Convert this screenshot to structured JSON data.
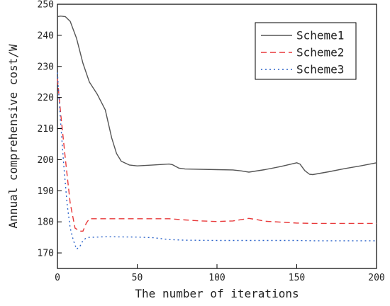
{
  "chart_data": {
    "type": "line",
    "xlabel": "The number of iterations",
    "ylabel": "Annual comprehensive cost/W",
    "xlim": [
      0,
      200
    ],
    "ylim": [
      165,
      250
    ],
    "xticks": [
      0,
      50,
      100,
      150,
      200
    ],
    "yticks": [
      170,
      180,
      190,
      200,
      210,
      220,
      230,
      240,
      250
    ],
    "grid": false,
    "legend_position": "top-right",
    "series": [
      {
        "name": "Scheme1",
        "color": "#555555",
        "dash": "solid",
        "x": [
          0,
          2,
          5,
          8,
          12,
          16,
          20,
          25,
          30,
          34,
          37,
          40,
          45,
          50,
          60,
          70,
          72,
          76,
          80,
          100,
          110,
          115,
          120,
          130,
          140,
          150,
          152,
          155,
          158,
          160,
          170,
          180,
          190,
          200
        ],
        "y": [
          246,
          246.2,
          246,
          244.5,
          239,
          231,
          225,
          221,
          216,
          207,
          202,
          199.5,
          198.3,
          198,
          198.3,
          198.6,
          198.4,
          197.3,
          197,
          196.8,
          196.7,
          196.4,
          196,
          196.8,
          197.8,
          199,
          198.6,
          196.5,
          195.3,
          195.2,
          196.1,
          197.1,
          198,
          199
        ]
      },
      {
        "name": "Scheme2",
        "color": "#e8393a",
        "dash": "dashed",
        "x": [
          0,
          2,
          5,
          8,
          11,
          14,
          16,
          18,
          20,
          30,
          50,
          60,
          70,
          80,
          90,
          100,
          110,
          115,
          120,
          125,
          130,
          140,
          150,
          160,
          170,
          180,
          190,
          200
        ],
        "y": [
          226,
          215,
          200,
          186,
          178,
          177,
          177,
          179.5,
          181,
          181,
          181,
          181,
          181,
          180.6,
          180.3,
          180.1,
          180.3,
          180.7,
          181.1,
          180.7,
          180.2,
          179.9,
          179.6,
          179.5,
          179.5,
          179.5,
          179.5,
          179.5
        ]
      },
      {
        "name": "Scheme3",
        "color": "#2a62c9",
        "dash": "dotted",
        "x": [
          0,
          2,
          4,
          6,
          8,
          10,
          12,
          14,
          16,
          18,
          20,
          25,
          30,
          50,
          60,
          70,
          80,
          100,
          120,
          140,
          150,
          160,
          180,
          200
        ],
        "y": [
          228,
          212,
          198,
          186,
          178,
          174,
          171.2,
          172,
          174,
          174.8,
          175,
          175.1,
          175.2,
          175.1,
          174.9,
          174.3,
          174.1,
          174,
          174,
          174,
          174,
          173.9,
          173.9,
          173.9
        ]
      }
    ]
  }
}
